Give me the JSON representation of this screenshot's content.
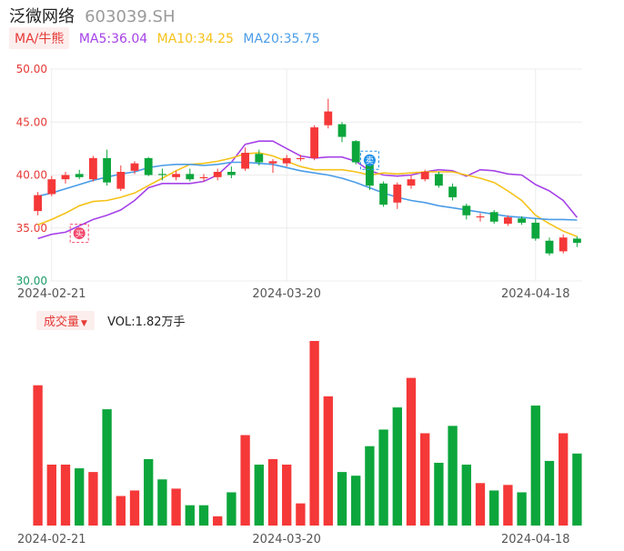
{
  "header": {
    "name": "泛微网络",
    "code": "603039.SH"
  },
  "ma_legend": {
    "tag": "MA/牛熊",
    "items": [
      {
        "label": "MA5:36.04",
        "color": "#a642e8"
      },
      {
        "label": "MA10:34.25",
        "color": "#f5c218"
      },
      {
        "label": "MA20:35.75",
        "color": "#4a9ce8"
      }
    ]
  },
  "volume_legend": {
    "tag": "成交量",
    "caret": "▼",
    "value": "VOL:1.82万手"
  },
  "colors": {
    "up": "#f53838",
    "down": "#0ca63c",
    "grid": "#ececec",
    "axis_text": "#555555",
    "price_top_text": "#e53935",
    "price_bottom_text": "#1a9a66",
    "badge_buy": "#f5476c",
    "badge_sell": "#1e90e8"
  },
  "chart_data": [
    {
      "type": "candlestick",
      "y_ticks": [
        "50.00",
        "45.00",
        "40.00",
        "35.00",
        "30.00"
      ],
      "ylim": [
        30,
        50
      ],
      "x_tick_labels": [
        {
          "label": "2024-02-21",
          "index": 1
        },
        {
          "label": "2024-03-20",
          "index": 18
        },
        {
          "label": "2024-04-18",
          "index": 36
        }
      ],
      "candles": [
        {
          "o": 36.6,
          "c": 38.1,
          "h": 38.4,
          "l": 36.2
        },
        {
          "o": 38.2,
          "c": 39.6,
          "h": 39.9,
          "l": 38.0
        },
        {
          "o": 39.6,
          "c": 40.0,
          "h": 40.3,
          "l": 39.2
        },
        {
          "o": 40.1,
          "c": 39.8,
          "h": 40.5,
          "l": 39.6
        },
        {
          "o": 39.6,
          "c": 41.6,
          "h": 41.8,
          "l": 39.4
        },
        {
          "o": 41.6,
          "c": 39.3,
          "h": 42.4,
          "l": 39.0
        },
        {
          "o": 38.7,
          "c": 40.3,
          "h": 40.9,
          "l": 38.5
        },
        {
          "o": 40.4,
          "c": 41.1,
          "h": 41.3,
          "l": 40.1
        },
        {
          "o": 41.6,
          "c": 40.0,
          "h": 41.7,
          "l": 39.9
        },
        {
          "o": 40.1,
          "c": 40.0,
          "h": 40.6,
          "l": 39.5
        },
        {
          "o": 39.8,
          "c": 40.1,
          "h": 40.4,
          "l": 39.5
        },
        {
          "o": 40.1,
          "c": 39.6,
          "h": 40.6,
          "l": 39.4
        },
        {
          "o": 39.7,
          "c": 39.8,
          "h": 40.1,
          "l": 39.4
        },
        {
          "o": 39.8,
          "c": 40.3,
          "h": 40.6,
          "l": 39.5
        },
        {
          "o": 40.3,
          "c": 40.0,
          "h": 40.8,
          "l": 39.7
        },
        {
          "o": 40.6,
          "c": 42.1,
          "h": 42.6,
          "l": 40.4
        },
        {
          "o": 42.0,
          "c": 41.2,
          "h": 42.4,
          "l": 40.9
        },
        {
          "o": 41.1,
          "c": 41.3,
          "h": 41.5,
          "l": 40.2
        },
        {
          "o": 41.1,
          "c": 41.6,
          "h": 41.9,
          "l": 40.8
        },
        {
          "o": 41.5,
          "c": 41.6,
          "h": 41.9,
          "l": 41.3
        },
        {
          "o": 41.6,
          "c": 44.5,
          "h": 44.7,
          "l": 41.4
        },
        {
          "o": 44.7,
          "c": 46.0,
          "h": 47.2,
          "l": 44.4
        },
        {
          "o": 44.8,
          "c": 43.6,
          "h": 45.0,
          "l": 43.1
        },
        {
          "o": 43.2,
          "c": 41.2,
          "h": 43.3,
          "l": 41.0
        },
        {
          "o": 41.4,
          "c": 39.0,
          "h": 41.6,
          "l": 38.6
        },
        {
          "o": 39.2,
          "c": 37.2,
          "h": 39.4,
          "l": 37.0
        },
        {
          "o": 37.4,
          "c": 39.1,
          "h": 39.3,
          "l": 36.8
        },
        {
          "o": 39.0,
          "c": 39.6,
          "h": 40.0,
          "l": 38.7
        },
        {
          "o": 39.6,
          "c": 40.3,
          "h": 40.5,
          "l": 39.4
        },
        {
          "o": 40.1,
          "c": 39.0,
          "h": 40.3,
          "l": 38.8
        },
        {
          "o": 38.9,
          "c": 37.9,
          "h": 39.2,
          "l": 37.6
        },
        {
          "o": 37.1,
          "c": 36.2,
          "h": 37.3,
          "l": 35.8
        },
        {
          "o": 36.1,
          "c": 36.1,
          "h": 36.4,
          "l": 35.6
        },
        {
          "o": 36.5,
          "c": 35.6,
          "h": 36.7,
          "l": 35.4
        },
        {
          "o": 35.4,
          "c": 36.0,
          "h": 36.2,
          "l": 35.2
        },
        {
          "o": 35.9,
          "c": 35.5,
          "h": 36.1,
          "l": 35.3
        },
        {
          "o": 35.5,
          "c": 34.0,
          "h": 35.9,
          "l": 33.8
        },
        {
          "o": 33.8,
          "c": 32.6,
          "h": 34.1,
          "l": 32.4
        },
        {
          "o": 32.8,
          "c": 34.1,
          "h": 34.4,
          "l": 32.6
        },
        {
          "o": 34.0,
          "c": 33.6,
          "h": 34.2,
          "l": 33.2
        }
      ],
      "series": [
        {
          "name": "MA5",
          "color": "#a642e8",
          "values": [
            34.0,
            34.4,
            34.6,
            35.2,
            35.8,
            36.2,
            36.7,
            37.6,
            38.8,
            39.2,
            39.2,
            39.2,
            39.4,
            40.0,
            41.2,
            42.9,
            43.2,
            43.2,
            42.5,
            41.8,
            41.6,
            41.7,
            41.7,
            41.3,
            40.4,
            40.0,
            39.9,
            40.0,
            40.3,
            40.5,
            40.4,
            39.9,
            40.5,
            40.4,
            40.1,
            40.0,
            39.1,
            38.5,
            37.6,
            36.0
          ]
        },
        {
          "name": "MA10",
          "color": "#f5c218",
          "values": [
            35.3,
            35.8,
            36.4,
            37.1,
            37.5,
            37.6,
            37.9,
            38.3,
            39.0,
            39.7,
            40.4,
            41.0,
            41.1,
            41.3,
            41.6,
            42.0,
            42.1,
            41.8,
            41.3,
            40.8,
            40.5,
            40.5,
            40.5,
            40.3,
            40.0,
            40.2,
            40.1,
            40.2,
            40.3,
            40.3,
            40.3,
            40.0,
            39.7,
            39.3,
            38.5,
            37.6,
            36.2,
            35.4,
            34.7,
            34.2
          ]
        },
        {
          "name": "MA20",
          "color": "#4a9ce8",
          "values": [
            38.0,
            38.3,
            38.7,
            39.1,
            39.5,
            39.8,
            40.1,
            40.3,
            40.7,
            40.9,
            41.0,
            41.0,
            40.9,
            41.0,
            41.2,
            41.2,
            41.1,
            41.0,
            40.7,
            40.4,
            40.2,
            40.0,
            39.7,
            39.3,
            38.8,
            38.3,
            37.9,
            37.6,
            37.4,
            37.1,
            36.9,
            36.7,
            36.5,
            36.3,
            36.1,
            36.0,
            35.9,
            35.8,
            35.8,
            35.75
          ]
        }
      ],
      "markers": [
        {
          "label": "卖",
          "index": 24,
          "y": 41.4,
          "kind": "sell"
        },
        {
          "label": "买",
          "index": 3,
          "y": 34.5,
          "kind": "buy"
        }
      ]
    },
    {
      "type": "bar",
      "x_tick_labels": [
        {
          "label": "2024-02-21",
          "index": 1
        },
        {
          "label": "2024-03-20",
          "index": 18
        },
        {
          "label": "2024-04-18",
          "index": 36
        }
      ],
      "max_value": 1.0,
      "values": [
        0.76,
        0.33,
        0.33,
        0.31,
        0.29,
        0.63,
        0.16,
        0.19,
        0.36,
        0.25,
        0.2,
        0.11,
        0.11,
        0.05,
        0.18,
        0.49,
        0.33,
        0.36,
        0.33,
        0.12,
        1.0,
        0.7,
        0.29,
        0.27,
        0.43,
        0.52,
        0.64,
        0.8,
        0.5,
        0.34,
        0.54,
        0.33,
        0.23,
        0.19,
        0.22,
        0.18,
        0.65,
        0.35,
        0.5,
        0.39
      ],
      "up": [
        true,
        true,
        true,
        false,
        true,
        false,
        true,
        true,
        false,
        false,
        true,
        false,
        false,
        true,
        false,
        true,
        false,
        true,
        true,
        true,
        true,
        true,
        false,
        false,
        false,
        false,
        false,
        true,
        true,
        false,
        false,
        false,
        true,
        false,
        true,
        false,
        false,
        false,
        true,
        false
      ]
    }
  ]
}
